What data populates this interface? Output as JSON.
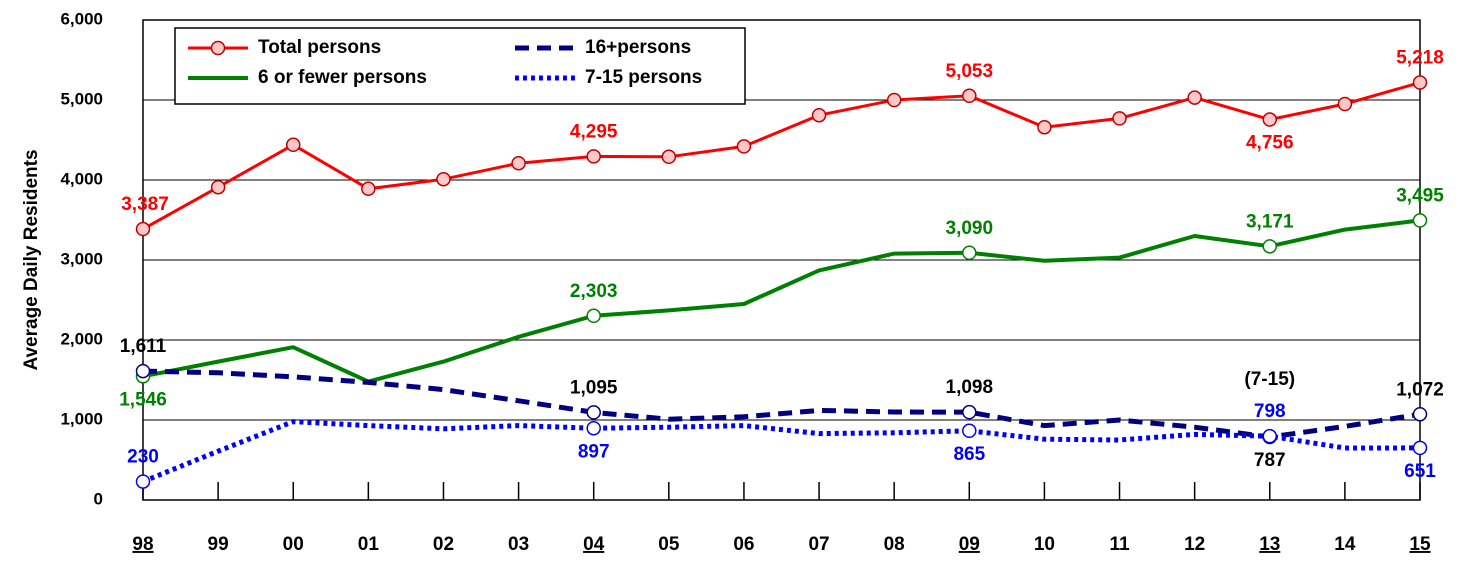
{
  "chart_data": {
    "type": "line",
    "y_label": "Average Daily Residents",
    "categories": [
      "98",
      "99",
      "00",
      "01",
      "02",
      "03",
      "04",
      "05",
      "06",
      "07",
      "08",
      "09",
      "10",
      "11",
      "12",
      "13",
      "14",
      "15"
    ],
    "underlined_categories": [
      "98",
      "04",
      "09",
      "13",
      "15"
    ],
    "ylim": [
      0,
      6000
    ],
    "yticks": [
      0,
      {
        "value": 1000,
        "label": "1,000"
      },
      {
        "value": 2000,
        "label": "2,000"
      },
      {
        "value": 3000,
        "label": "3,000"
      },
      {
        "value": 4000,
        "label": "4,000"
      },
      {
        "value": 5000,
        "label": "5,000"
      },
      {
        "value": 6000,
        "label": "6,000"
      }
    ],
    "grid": true,
    "legend": "top-left",
    "annotations": [
      "(7-15)"
    ],
    "series": [
      {
        "name": "Total persons",
        "color": "#ff0000",
        "dash": "solid",
        "markers": "all",
        "values": [
          3387,
          3910,
          4440,
          3890,
          4010,
          4210,
          4295,
          4290,
          4420,
          4810,
          5000,
          5053,
          4660,
          4770,
          5030,
          4756,
          4950,
          5218
        ],
        "value_labels": [
          "3,387",
          null,
          null,
          null,
          null,
          null,
          "4,295",
          null,
          null,
          null,
          null,
          "5,053",
          null,
          null,
          null,
          "4,756",
          null,
          "5,218"
        ]
      },
      {
        "name": "6 or fewer persons",
        "color": "#008000",
        "dash": "solid",
        "markers": "labeled",
        "values": [
          1546,
          1730,
          1910,
          1480,
          1730,
          2040,
          2303,
          2370,
          2450,
          2870,
          3080,
          3090,
          2990,
          3030,
          3300,
          3171,
          3380,
          3495
        ],
        "value_labels": [
          "1,546",
          null,
          null,
          null,
          null,
          null,
          "2,303",
          null,
          null,
          null,
          null,
          "3,090",
          null,
          null,
          null,
          "3,171",
          null,
          "3,495"
        ]
      },
      {
        "name": "16+persons",
        "color": "#000080",
        "dash": "dashed",
        "markers": "labeled",
        "label_color": "#000000",
        "values": [
          1611,
          1590,
          1540,
          1470,
          1380,
          1240,
          1095,
          1010,
          1040,
          1120,
          1100,
          1098,
          930,
          1000,
          910,
          787,
          920,
          1072
        ],
        "value_labels": [
          "1,611",
          null,
          null,
          null,
          null,
          null,
          "1,095",
          null,
          null,
          null,
          null,
          "1,098",
          null,
          null,
          null,
          "787",
          null,
          "1,072"
        ]
      },
      {
        "name": "7-15 persons",
        "color": "#0000ff",
        "dash": "dotted",
        "markers": "labeled",
        "values": [
          230,
          610,
          980,
          930,
          890,
          930,
          897,
          910,
          930,
          830,
          840,
          865,
          760,
          750,
          820,
          798,
          650,
          651
        ],
        "value_labels": [
          "230",
          null,
          null,
          null,
          null,
          null,
          "897",
          null,
          null,
          null,
          null,
          "865",
          null,
          null,
          null,
          "798",
          null,
          "651"
        ]
      }
    ]
  }
}
